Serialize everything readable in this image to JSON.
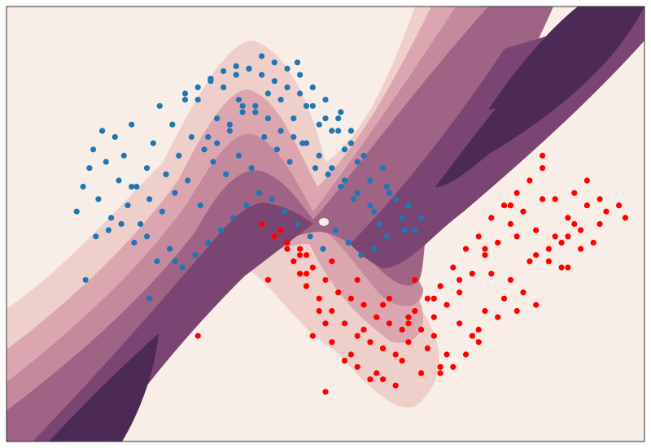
{
  "chart_data": {
    "type": "scatter",
    "title": "",
    "xlabel": "",
    "ylabel": "",
    "xlim": [
      -2.0,
      3.0
    ],
    "ylim": [
      -1.5,
      2.0
    ],
    "grid": false,
    "legend": "none",
    "background": {
      "type": "filled-contour",
      "levels": 7,
      "colors": [
        "#f8ede7",
        "#efcfca",
        "#dca6b0",
        "#c38a9d",
        "#9e6385",
        "#7a4572",
        "#4d2a55"
      ]
    },
    "series": [
      {
        "color": "#1f77b4",
        "x": [
          -1.45,
          -1.35,
          -1.28,
          -1.32,
          -1.4,
          -1.25,
          -1.18,
          -1.22,
          -1.12,
          -1.15,
          -1.05,
          -1.08,
          -0.98,
          -1.02,
          -0.95,
          -0.9,
          -0.85,
          -0.88,
          -0.8,
          -0.75,
          -0.78,
          -0.7,
          -0.65,
          -0.68,
          -0.6,
          -0.55,
          -0.58,
          -0.5,
          -0.45,
          -0.48,
          -0.4,
          -0.35,
          -0.38,
          -0.3,
          -0.25,
          -0.28,
          -0.2,
          -0.15,
          -0.18,
          -0.1,
          -0.05,
          -0.08,
          0.0,
          0.05,
          0.02,
          0.1,
          0.15,
          0.12,
          0.2,
          0.25,
          0.22,
          0.3,
          0.35,
          0.32,
          0.4,
          0.45,
          0.42,
          0.5,
          0.55,
          0.52,
          0.6,
          0.65,
          0.62,
          0.7,
          0.75,
          0.72,
          0.8,
          0.85,
          0.88,
          0.95,
          1.0,
          0.92,
          1.05,
          1.1,
          1.15,
          1.2,
          1.25,
          -1.3,
          -1.2,
          -1.1,
          -1.0,
          -0.9,
          -0.82,
          -0.72,
          -0.62,
          -0.52,
          -0.42,
          -0.32,
          -0.22,
          -0.12,
          -0.02,
          0.08,
          0.18,
          0.28,
          0.38,
          0.48,
          0.58,
          0.68,
          0.78,
          0.88,
          0.98,
          -0.35,
          -0.25,
          -0.15,
          -0.05,
          0.05,
          0.15,
          0.25,
          0.35,
          0.45,
          0.55,
          0.65,
          0.75,
          0.85,
          -0.6,
          -0.5,
          -0.4,
          -0.3,
          -0.2,
          -0.1,
          0.0,
          0.1,
          0.2,
          0.3,
          0.4,
          0.5,
          0.6,
          0.7,
          -1.38,
          -0.88,
          -1.02,
          -0.68,
          -0.42,
          -0.18,
          0.28,
          0.62,
          0.98,
          1.12
        ],
        "y": [
          0.35,
          0.7,
          0.45,
          0.85,
          0.55,
          1.0,
          0.3,
          0.75,
          0.6,
          0.95,
          0.4,
          0.8,
          0.55,
          1.05,
          0.25,
          0.7,
          0.9,
          0.45,
          1.2,
          0.65,
          0.35,
          1.05,
          0.8,
          0.5,
          1.3,
          0.95,
          0.6,
          1.25,
          0.85,
          0.4,
          1.4,
          1.1,
          0.75,
          1.35,
          1.0,
          0.65,
          1.45,
          1.2,
          0.8,
          1.5,
          1.15,
          0.7,
          1.6,
          1.3,
          0.95,
          1.55,
          1.25,
          0.85,
          1.5,
          1.1,
          0.75,
          1.45,
          1.2,
          0.9,
          1.35,
          1.05,
          0.7,
          1.25,
          1.0,
          0.65,
          1.1,
          0.85,
          0.55,
          1.0,
          0.75,
          0.45,
          0.8,
          0.6,
          0.35,
          0.7,
          0.5,
          0.25,
          0.45,
          0.3,
          0.4,
          0.2,
          0.3,
          0.15,
          0.2,
          0.25,
          0.1,
          0.15,
          -0.05,
          0.05,
          -0.1,
          0.0,
          0.1,
          0.2,
          0.3,
          0.4,
          0.5,
          0.45,
          0.35,
          0.25,
          0.15,
          0.05,
          0.2,
          0.1,
          0.0,
          0.05,
          0.15,
          0.9,
          1.05,
          1.15,
          1.2,
          1.1,
          1.0,
          0.95,
          0.9,
          0.8,
          0.7,
          0.6,
          0.5,
          0.4,
          1.25,
          1.35,
          1.42,
          1.48,
          1.52,
          1.5,
          1.45,
          1.4,
          1.35,
          1.3,
          1.2,
          1.1,
          1.0,
          0.9,
          -0.2,
          -0.35,
          0.55,
          -0.05,
          0.95,
          1.25,
          1.55,
          1.15,
          0.55,
          0.2
        ]
      },
      {
        "color": "#ff0000",
        "x": [
          0.2,
          0.3,
          0.4,
          0.5,
          0.6,
          0.7,
          0.8,
          0.9,
          1.0,
          1.1,
          1.2,
          1.3,
          1.4,
          1.5,
          1.6,
          1.7,
          1.8,
          1.9,
          2.0,
          2.1,
          2.2,
          2.3,
          2.4,
          2.5,
          2.6,
          2.7,
          0.25,
          0.35,
          0.45,
          0.55,
          0.65,
          0.75,
          0.85,
          0.95,
          1.05,
          1.15,
          1.25,
          1.35,
          1.45,
          1.55,
          1.65,
          1.75,
          1.85,
          1.95,
          2.05,
          2.15,
          2.25,
          2.35,
          2.45,
          2.55,
          2.65,
          0.15,
          0.35,
          0.55,
          0.75,
          0.95,
          1.15,
          1.35,
          1.55,
          1.75,
          1.95,
          2.15,
          2.35,
          2.55,
          0.3,
          0.5,
          0.7,
          0.9,
          1.1,
          1.3,
          1.5,
          1.7,
          1.9,
          2.1,
          2.3,
          2.5,
          0.4,
          0.6,
          0.8,
          1.0,
          1.2,
          1.4,
          1.6,
          1.8,
          2.0,
          2.2,
          2.4,
          0.0,
          0.1,
          0.2,
          0.3,
          0.45,
          0.65,
          0.85,
          1.05,
          1.25,
          1.45,
          1.65,
          1.85,
          2.05,
          2.25,
          2.45,
          2.65,
          2.8,
          0.55,
          0.75,
          0.95,
          1.15,
          1.35,
          1.55,
          1.75,
          1.95,
          2.15,
          -0.5,
          0.5,
          0.95,
          1.4,
          2.0,
          2.4,
          2.85,
          1.7,
          2.2,
          0.05,
          0.35
        ],
        "y": [
          0.1,
          0.0,
          -0.1,
          -0.2,
          -0.3,
          -0.35,
          -0.4,
          -0.5,
          -0.55,
          -0.6,
          -0.45,
          -0.35,
          -0.25,
          -0.1,
          0.05,
          0.15,
          0.3,
          0.4,
          0.5,
          0.6,
          0.7,
          0.45,
          0.3,
          0.2,
          0.1,
          0.35,
          -0.05,
          -0.25,
          -0.35,
          -0.45,
          -0.55,
          -0.65,
          -0.7,
          -0.75,
          -0.8,
          -0.7,
          -0.6,
          -0.5,
          -0.4,
          -0.3,
          -0.15,
          0.0,
          0.1,
          0.25,
          0.35,
          0.2,
          0.05,
          -0.1,
          0.5,
          0.4,
          0.25,
          0.2,
          -0.15,
          -0.05,
          -0.2,
          -0.4,
          -0.5,
          -0.65,
          -0.55,
          -0.45,
          -0.2,
          0.0,
          0.1,
          0.6,
          0.05,
          -0.55,
          -0.8,
          -0.95,
          -0.85,
          -0.75,
          -0.9,
          -0.7,
          -0.35,
          -0.05,
          0.15,
          0.05,
          -0.65,
          -0.3,
          -0.6,
          -0.35,
          -0.2,
          -0.9,
          -0.8,
          -0.15,
          0.15,
          0.45,
          0.15,
          0.25,
          0.15,
          0.05,
          -0.15,
          -0.45,
          -0.85,
          -1.0,
          -1.05,
          -0.95,
          -0.8,
          -0.65,
          -0.5,
          -0.3,
          -0.05,
          0.25,
          0.45,
          0.4,
          -0.7,
          -0.9,
          -0.75,
          -0.55,
          -0.35,
          -0.2,
          0.05,
          0.4,
          -0.4,
          -0.65,
          -1.1,
          -1.0,
          -0.95,
          -0.45,
          -0.1,
          0.3,
          -0.6,
          0.8,
          -0.2,
          0.0
        ]
      }
    ]
  }
}
